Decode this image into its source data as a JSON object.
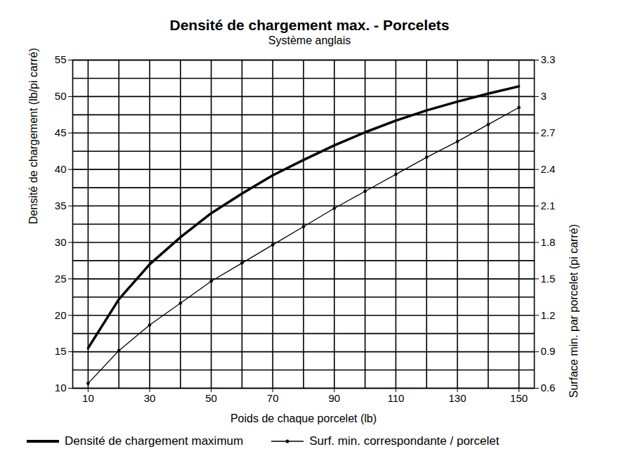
{
  "chart_data": {
    "type": "line",
    "title": "Densité de chargement max. - Porcelets",
    "subtitle": "Système anglais",
    "x_label": "Poids de chaque porcelet (lb)",
    "y_label": "Densité de chargement (lb/pi carré)",
    "y2_label": "Surface min. par porcelet (pi carré)",
    "x": [
      10,
      20,
      30,
      40,
      50,
      60,
      70,
      80,
      90,
      100,
      110,
      120,
      130,
      140,
      150
    ],
    "xlim": [
      5,
      155
    ],
    "xticks": [
      10,
      30,
      50,
      70,
      90,
      110,
      130,
      150
    ],
    "ylim": [
      10,
      55
    ],
    "yticks": [
      10,
      15,
      20,
      25,
      30,
      35,
      40,
      45,
      50,
      55
    ],
    "y2lim": [
      0.6,
      3.3
    ],
    "y2ticks": [
      0.6,
      0.9,
      1.2,
      1.5,
      1.8,
      2.1,
      2.4,
      2.7,
      3,
      3.3
    ],
    "grid": true,
    "legend": "bottom",
    "series": [
      {
        "name": "Densité de chargement maximum",
        "color": "#000000",
        "marker": "none",
        "line_style": "solid",
        "values": [
          15.5,
          22.2,
          27,
          30.7,
          34,
          36.7,
          39.2,
          41.3,
          43.3,
          45.1,
          46.7,
          48.1,
          49.3,
          50.4,
          51.4
        ]
      },
      {
        "name": "Surf. min. correspondante / porcelet",
        "color": "#000000",
        "marker": "circle",
        "line_style": "solid",
        "axis": "y2",
        "values": [
          0.64,
          0.91,
          1.12,
          1.3,
          1.48,
          1.63,
          1.78,
          1.93,
          2.08,
          2.22,
          2.36,
          2.5,
          2.63,
          2.77,
          2.91
        ]
      }
    ]
  }
}
